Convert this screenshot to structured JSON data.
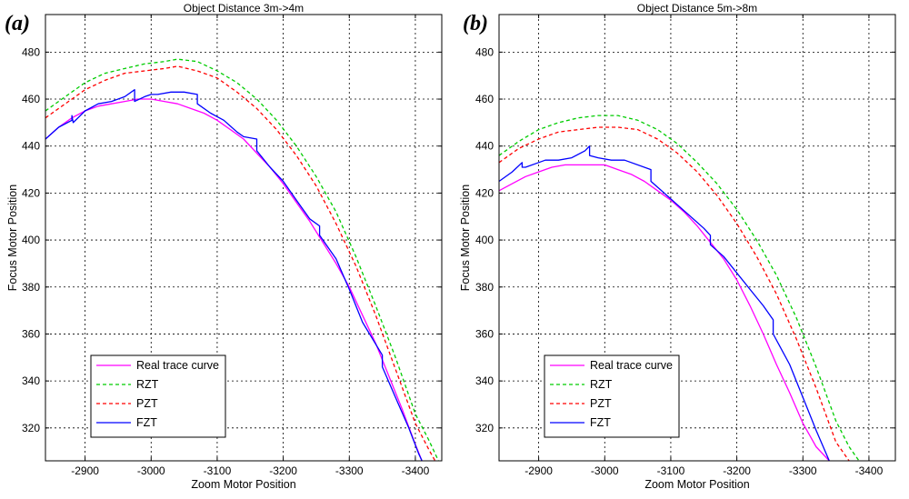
{
  "chart_data": [
    {
      "type": "line",
      "panel_label": "(a)",
      "title": "Object Distance 3m->4m",
      "xlabel": "Zoom Motor Position",
      "ylabel": "Focus Motor Position",
      "xlim": [
        -2840,
        -3440
      ],
      "ylim": [
        306,
        496
      ],
      "xticks": [
        -2900,
        -3000,
        -3100,
        -3200,
        -3300,
        -3400
      ],
      "yticks": [
        320,
        340,
        360,
        380,
        400,
        420,
        440,
        460,
        480
      ],
      "grid": true,
      "legend": "bottom-left",
      "series": [
        {
          "name": "Real trace curve",
          "color": "#ff00ff",
          "dash": "solid",
          "x": [
            -2840,
            -2860,
            -2880,
            -2900,
            -2920,
            -2940,
            -2960,
            -2980,
            -3000,
            -3020,
            -3040,
            -3060,
            -3080,
            -3100,
            -3120,
            -3140,
            -3160,
            -3180,
            -3200,
            -3220,
            -3240,
            -3260,
            -3280,
            -3300,
            -3320,
            -3340,
            -3360,
            -3380,
            -3400,
            -3410
          ],
          "y": [
            443,
            448,
            452,
            455,
            457,
            458,
            459,
            460,
            460,
            459,
            458,
            456,
            454,
            451,
            447,
            443,
            437,
            431,
            424,
            416,
            408,
            399,
            390,
            380,
            368,
            356,
            342,
            328,
            313,
            306
          ]
        },
        {
          "name": "RZT",
          "color": "#00cc00",
          "dash": "4,3",
          "x": [
            -2840,
            -2870,
            -2900,
            -2930,
            -2960,
            -2990,
            -3020,
            -3040,
            -3070,
            -3100,
            -3130,
            -3160,
            -3190,
            -3220,
            -3250,
            -3280,
            -3310,
            -3340,
            -3370,
            -3400,
            -3420,
            -3435
          ],
          "y": [
            455,
            461,
            467,
            471,
            473,
            475,
            476,
            477,
            476,
            472,
            467,
            460,
            451,
            440,
            427,
            412,
            393,
            372,
            350,
            326,
            315,
            306
          ]
        },
        {
          "name": "PZT",
          "color": "#ff0000",
          "dash": "4,3",
          "x": [
            -2840,
            -2870,
            -2900,
            -2930,
            -2960,
            -2990,
            -3020,
            -3040,
            -3070,
            -3100,
            -3130,
            -3160,
            -3190,
            -3220,
            -3250,
            -3280,
            -3310,
            -3340,
            -3370,
            -3400,
            -3420,
            -3430
          ],
          "y": [
            452,
            458,
            464,
            468,
            471,
            472,
            473,
            474,
            472,
            469,
            463,
            456,
            447,
            436,
            423,
            407,
            389,
            368,
            345,
            322,
            311,
            306
          ]
        },
        {
          "name": "FZT",
          "color": "#0000ff",
          "dash": "solid",
          "x": [
            -2840,
            -2860,
            -2880,
            -2880,
            -2882,
            -2900,
            -2920,
            -2940,
            -2960,
            -2975,
            -2975,
            -2990,
            -3000,
            -3010,
            -3030,
            -3050,
            -3070,
            -3070,
            -3090,
            -3110,
            -3130,
            -3140,
            -3160,
            -3160,
            -3180,
            -3200,
            -3220,
            -3240,
            -3255,
            -3255,
            -3280,
            -3300,
            -3320,
            -3350,
            -3350,
            -3370,
            -3390,
            -3405,
            -3410
          ],
          "y": [
            443,
            448,
            451,
            453,
            450,
            455,
            458,
            459,
            461,
            464,
            459,
            461,
            462,
            462,
            463,
            463,
            462,
            458,
            454,
            451,
            446,
            444,
            443,
            438,
            431,
            425,
            417,
            409,
            406,
            402,
            392,
            379,
            365,
            351,
            346,
            333,
            320,
            309,
            306
          ]
        }
      ]
    },
    {
      "type": "line",
      "panel_label": "(b)",
      "title": "Object Distance 5m->8m",
      "xlabel": "Zoom Motor Position",
      "ylabel": "Focus Motor Position",
      "xlim": [
        -2840,
        -3440
      ],
      "ylim": [
        306,
        496
      ],
      "xticks": [
        -2900,
        -3000,
        -3100,
        -3200,
        -3300,
        -3400
      ],
      "yticks": [
        320,
        340,
        360,
        380,
        400,
        420,
        440,
        460,
        480
      ],
      "grid": true,
      "legend": "bottom-left",
      "series": [
        {
          "name": "Real trace curve",
          "color": "#ff00ff",
          "dash": "solid",
          "x": [
            -2840,
            -2860,
            -2880,
            -2900,
            -2920,
            -2940,
            -2960,
            -2980,
            -3000,
            -3020,
            -3040,
            -3060,
            -3080,
            -3100,
            -3120,
            -3140,
            -3160,
            -3180,
            -3200,
            -3220,
            -3240,
            -3260,
            -3280,
            -3300,
            -3320,
            -3340
          ],
          "y": [
            421,
            424,
            427,
            429,
            431,
            432,
            432,
            432,
            432,
            430,
            428,
            425,
            421,
            417,
            412,
            406,
            399,
            392,
            383,
            372,
            360,
            347,
            335,
            322,
            312,
            306
          ]
        },
        {
          "name": "RZT",
          "color": "#00cc00",
          "dash": "4,3",
          "x": [
            -2840,
            -2870,
            -2900,
            -2930,
            -2960,
            -2990,
            -3020,
            -3050,
            -3080,
            -3110,
            -3140,
            -3170,
            -3200,
            -3230,
            -3260,
            -3290,
            -3320,
            -3350,
            -3370,
            -3385
          ],
          "y": [
            436,
            442,
            447,
            450,
            452,
            453,
            453,
            451,
            447,
            441,
            433,
            424,
            413,
            400,
            385,
            367,
            346,
            323,
            312,
            306
          ]
        },
        {
          "name": "PZT",
          "color": "#ff0000",
          "dash": "4,3",
          "x": [
            -2840,
            -2870,
            -2900,
            -2930,
            -2960,
            -2990,
            -3020,
            -3050,
            -3080,
            -3110,
            -3140,
            -3170,
            -3200,
            -3230,
            -3260,
            -3290,
            -3320,
            -3350,
            -3370
          ],
          "y": [
            433,
            439,
            443,
            446,
            447,
            448,
            448,
            447,
            443,
            437,
            429,
            419,
            407,
            393,
            377,
            358,
            337,
            314,
            306
          ]
        },
        {
          "name": "FZT",
          "color": "#0000ff",
          "dash": "solid",
          "x": [
            -2840,
            -2860,
            -2875,
            -2875,
            -2880,
            -2900,
            -2910,
            -2930,
            -2950,
            -2970,
            -2977,
            -2977,
            -2990,
            -3010,
            -3030,
            -3070,
            -3070,
            -3090,
            -3110,
            -3130,
            -3150,
            -3160,
            -3160,
            -3180,
            -3200,
            -3220,
            -3240,
            -3255,
            -3255,
            -3280,
            -3300,
            -3320,
            -3340
          ],
          "y": [
            425,
            429,
            433,
            431,
            431,
            433,
            434,
            434,
            435,
            438,
            440,
            436,
            435,
            434,
            434,
            430,
            425,
            420,
            415,
            410,
            405,
            402,
            398,
            393,
            386,
            379,
            372,
            366,
            360,
            347,
            333,
            319,
            306
          ]
        }
      ]
    }
  ]
}
